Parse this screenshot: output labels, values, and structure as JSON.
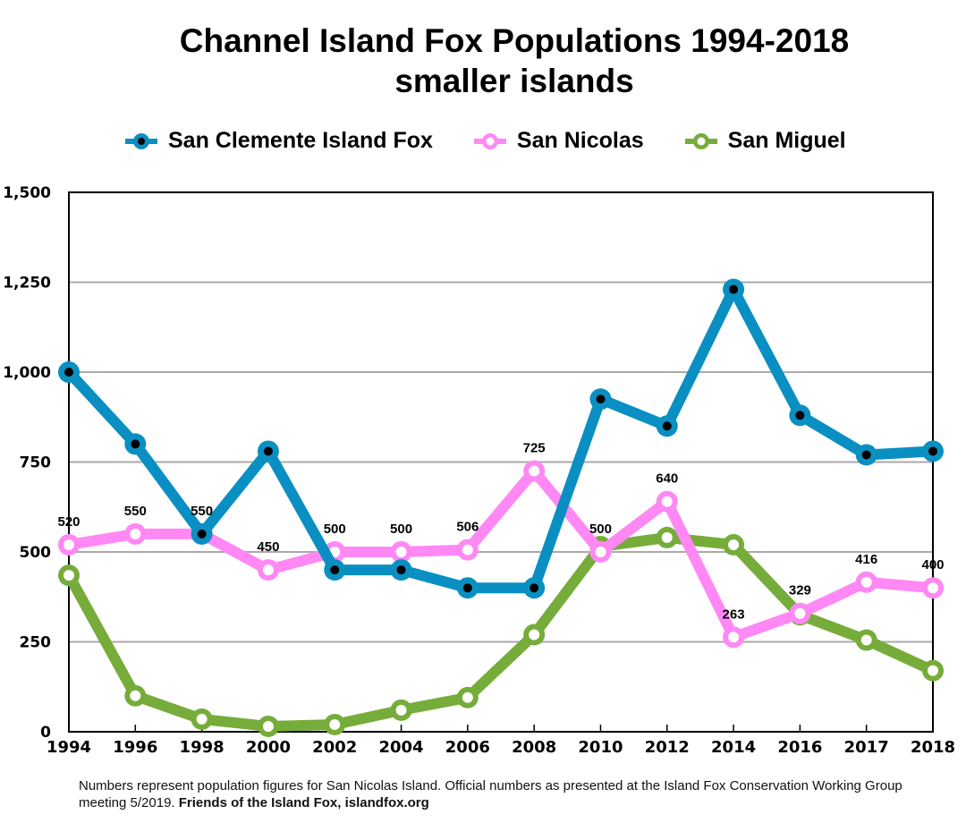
{
  "chart_data": {
    "type": "line",
    "title": "Channel Island Fox Populations 1994-2018",
    "subtitle": "smaller islands",
    "xlabel": "",
    "ylabel": "",
    "categories": [
      "1994",
      "1996",
      "1998",
      "2000",
      "2002",
      "2004",
      "2006",
      "2008",
      "2010",
      "2012",
      "2014",
      "2016",
      "2017",
      "2018"
    ],
    "ylim": [
      0,
      1500
    ],
    "yticks": [
      0,
      250,
      500,
      750,
      1000,
      1250,
      1500
    ],
    "ytick_labels": [
      "0",
      "250",
      "500",
      "750",
      "1,000",
      "1,250",
      "1,500"
    ],
    "grid": "horizontal",
    "legend_position": "top",
    "series": [
      {
        "name": "San Clemente Island Fox",
        "color": "#0a8fc2",
        "marker": "black-dot",
        "values": [
          1000,
          800,
          550,
          780,
          450,
          450,
          400,
          400,
          925,
          850,
          1230,
          880,
          770,
          780
        ]
      },
      {
        "name": "San Nicolas",
        "color": "#ff88f5",
        "marker": "hollow",
        "values": [
          520,
          550,
          550,
          450,
          500,
          500,
          506,
          725,
          500,
          640,
          263,
          329,
          416,
          400
        ],
        "data_labels": [
          "520",
          "550",
          "550",
          "450",
          "500",
          "500",
          "506",
          "725",
          "500",
          "640",
          "263",
          "329",
          "416",
          "400"
        ]
      },
      {
        "name": "San Miguel",
        "color": "#76ac3a",
        "marker": "hollow",
        "values": [
          435,
          100,
          35,
          15,
          20,
          60,
          95,
          270,
          515,
          540,
          520,
          325,
          255,
          170
        ]
      }
    ]
  },
  "footnote": {
    "text": "Numbers represent population figures for San Nicolas Island. Official numbers as presented at the Island Fox Conservation Working Group meeting 5/2019. ",
    "bold": "Friends of the Island Fox, islandfox.org"
  }
}
